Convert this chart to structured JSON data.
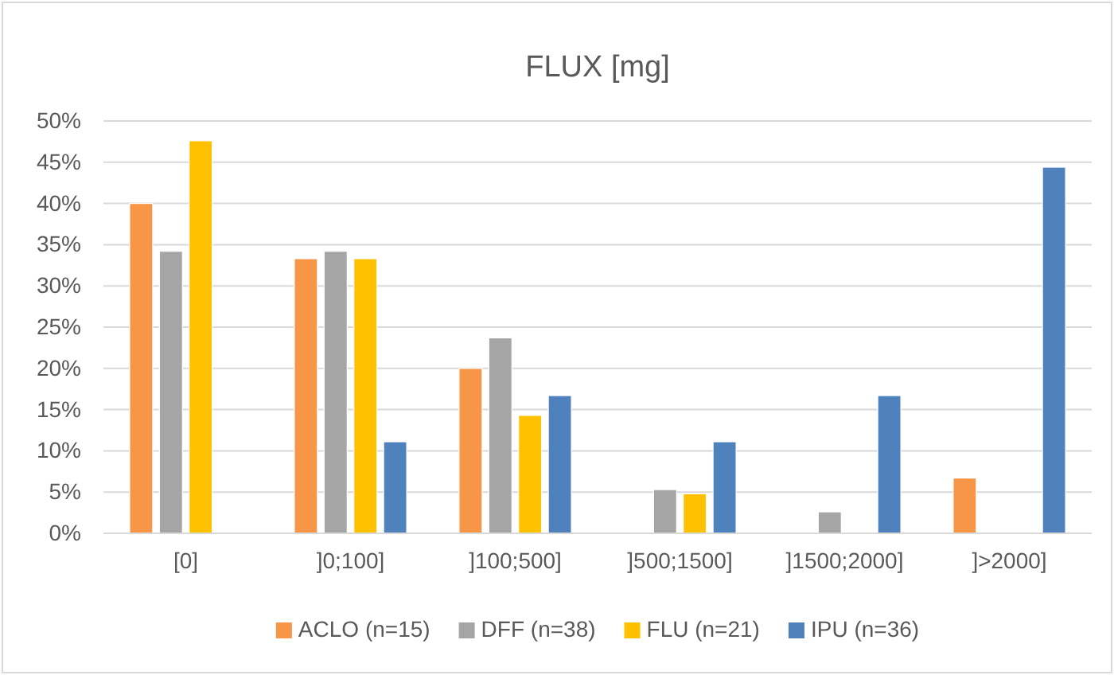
{
  "chart_data": {
    "type": "bar",
    "title": "FLUX [mg]",
    "categories": [
      "[0]",
      "]0;100]",
      "]100;500]",
      "]500;1500]",
      "]1500;2000]",
      "]>2000]"
    ],
    "series": [
      {
        "name": "ACLO (n=15)",
        "color": "#f79646",
        "values": [
          40,
          33.3,
          20,
          0,
          0,
          6.7
        ]
      },
      {
        "name": "DFF (n=38)",
        "color": "#a5a5a5",
        "values": [
          34.2,
          34.2,
          23.7,
          5.3,
          2.6,
          0
        ]
      },
      {
        "name": "FLU (n=21)",
        "color": "#ffc000",
        "values": [
          47.6,
          33.3,
          14.3,
          4.8,
          0,
          0
        ]
      },
      {
        "name": "IPU (n=36)",
        "color": "#4f81bd",
        "values": [
          0,
          11.1,
          16.7,
          11.1,
          16.7,
          44.4
        ]
      }
    ],
    "ylim": [
      0,
      50
    ],
    "yticks": [
      {
        "value": 0,
        "label": "0%"
      },
      {
        "value": 5,
        "label": "5%"
      },
      {
        "value": 10,
        "label": "10%"
      },
      {
        "value": 15,
        "label": "15%"
      },
      {
        "value": 20,
        "label": "20%"
      },
      {
        "value": 25,
        "label": "25%"
      },
      {
        "value": 30,
        "label": "30%"
      },
      {
        "value": 35,
        "label": "35%"
      },
      {
        "value": 40,
        "label": "40%"
      },
      {
        "value": 45,
        "label": "45%"
      },
      {
        "value": 50,
        "label": "50%"
      }
    ],
    "grid": "y",
    "legend": "bottom"
  }
}
